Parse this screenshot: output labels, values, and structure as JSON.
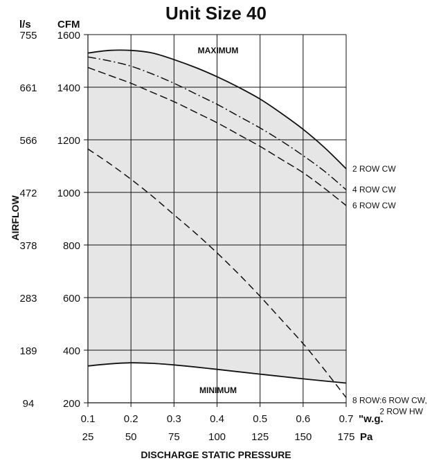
{
  "chart_data": {
    "type": "line",
    "title": "Unit Size 40",
    "xlabel": "DISCHARGE STATIC PRESSURE",
    "ylabel": "AIRFLOW",
    "x_unit_primary": "\"w.g.",
    "x_unit_secondary": "Pa",
    "y_unit_primary": "CFM",
    "y_unit_secondary": "l/s",
    "xlim": [
      0.1,
      0.7
    ],
    "ylim": [
      200,
      1600
    ],
    "x_ticks": [
      "0.1",
      "0.2",
      "0.3",
      "0.4",
      "0.5",
      "0.6",
      "0.7"
    ],
    "x_ticks_secondary": [
      "25",
      "50",
      "75",
      "100",
      "125",
      "150",
      "175"
    ],
    "y_ticks": [
      "200",
      "400",
      "600",
      "800",
      "1000",
      "1200",
      "1400",
      "1600"
    ],
    "y_ticks_secondary": [
      "94",
      "189",
      "283",
      "378",
      "472",
      "566",
      "661",
      "755"
    ],
    "grid": true,
    "envelope_fill": "#e6e6e6",
    "labels_inside": {
      "maximum": "MAXIMUM",
      "minimum": "MINIMUM"
    },
    "series": [
      {
        "name": "2 ROW CW",
        "style": "solid",
        "x": [
          0.1,
          0.15,
          0.2,
          0.25,
          0.3,
          0.35,
          0.4,
          0.45,
          0.5,
          0.55,
          0.6,
          0.65,
          0.7
        ],
        "y": [
          1530,
          1540,
          1540,
          1530,
          1505,
          1475,
          1440,
          1400,
          1355,
          1300,
          1240,
          1170,
          1090
        ]
      },
      {
        "name": "4 ROW CW",
        "style": "dashdot",
        "x": [
          0.1,
          0.15,
          0.2,
          0.25,
          0.3,
          0.35,
          0.4,
          0.45,
          0.5,
          0.55,
          0.6,
          0.65,
          0.7
        ],
        "y": [
          1515,
          1500,
          1480,
          1450,
          1415,
          1375,
          1335,
          1290,
          1245,
          1195,
          1140,
          1080,
          1010
        ]
      },
      {
        "name": "6 ROW CW",
        "style": "dash",
        "x": [
          0.1,
          0.15,
          0.2,
          0.25,
          0.3,
          0.35,
          0.4,
          0.45,
          0.5,
          0.55,
          0.6,
          0.65,
          0.7
        ],
        "y": [
          1475,
          1445,
          1415,
          1380,
          1345,
          1305,
          1265,
          1220,
          1175,
          1125,
          1075,
          1015,
          950
        ]
      },
      {
        "name": "8 ROW:6 ROW CW, 2 ROW HW",
        "name_line1": "8 ROW:6 ROW CW,",
        "name_line2": "2 ROW HW",
        "style": "longdash",
        "x": [
          0.1,
          0.15,
          0.2,
          0.25,
          0.3,
          0.35,
          0.4,
          0.45,
          0.5,
          0.55,
          0.6,
          0.65,
          0.7
        ],
        "y": [
          1165,
          1110,
          1050,
          985,
          915,
          845,
          770,
          690,
          605,
          515,
          425,
          325,
          220
        ]
      },
      {
        "name": "MINIMUM",
        "style": "solid",
        "x": [
          0.1,
          0.15,
          0.2,
          0.25,
          0.3,
          0.35,
          0.4,
          0.45,
          0.5,
          0.55,
          0.6,
          0.65,
          0.7
        ],
        "y": [
          340,
          348,
          352,
          350,
          344,
          336,
          327,
          318,
          309,
          300,
          291,
          283,
          275
        ]
      }
    ]
  }
}
